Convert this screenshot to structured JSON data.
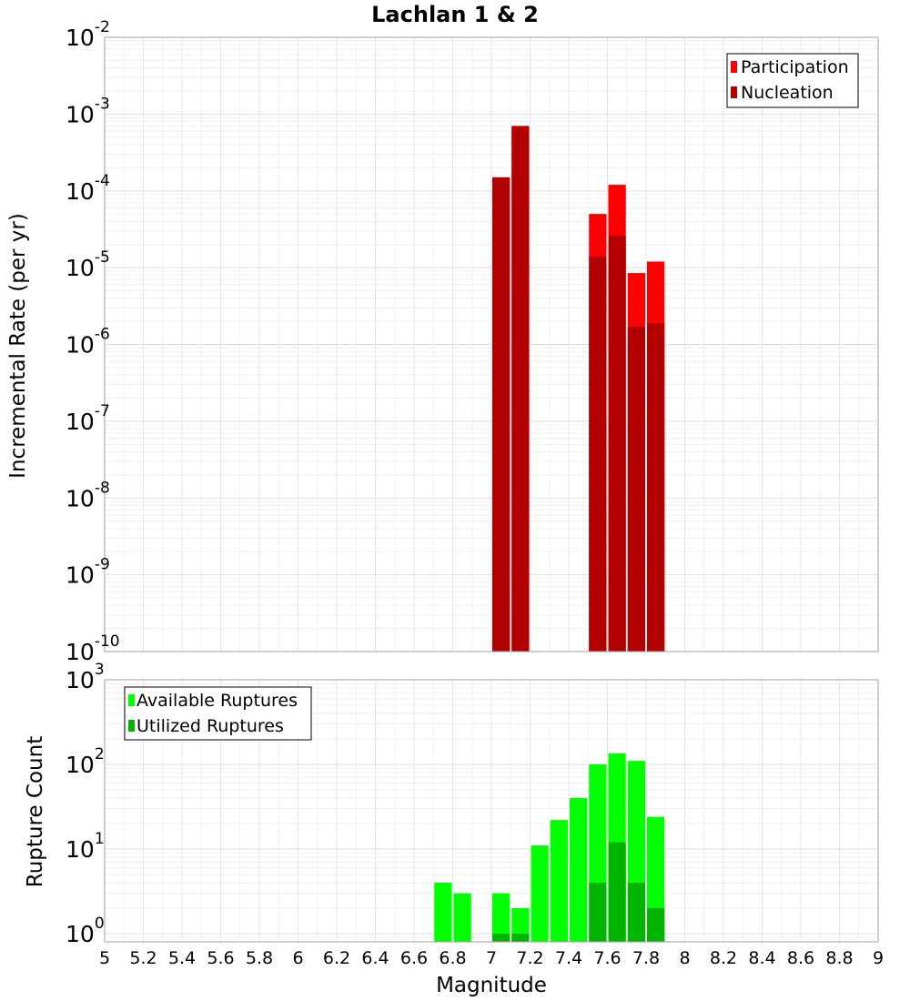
{
  "chart_data": [
    {
      "type": "bar",
      "title": "Lachlan 1 & 2",
      "xlabel": "Magnitude",
      "ylabel": "Incremental Rate (per yr)",
      "yscale": "log",
      "ylim": [
        1e-10,
        0.01
      ],
      "xlim": [
        5,
        9
      ],
      "y_tick_exponents": [
        -10,
        -9,
        -8,
        -7,
        -6,
        -5,
        -4,
        -3,
        -2
      ],
      "grid": true,
      "legend_position": "top-right",
      "bin_centers": [
        7.05,
        7.15,
        7.55,
        7.65,
        7.75,
        7.85
      ],
      "series": [
        {
          "name": "Participation",
          "color": "#ff0000",
          "values": [
            0.00015,
            0.0007,
            5e-05,
            0.00012,
            8.5e-06,
            1.2e-05
          ]
        },
        {
          "name": "Nucleation",
          "color": "#b20000",
          "values": [
            0.00015,
            0.0007,
            1.4e-05,
            2.6e-05,
            1.7e-06,
            1.9e-06
          ]
        }
      ]
    },
    {
      "type": "bar",
      "xlabel": "Magnitude",
      "ylabel": "Rupture Count",
      "yscale": "log",
      "ylim": [
        0.8,
        1000
      ],
      "xlim": [
        5,
        9
      ],
      "y_tick_exponents": [
        0,
        1,
        2,
        3
      ],
      "grid": true,
      "legend_position": "top-left",
      "x_ticks": [
        "5",
        "5.2",
        "5.4",
        "5.6",
        "5.8",
        "6",
        "6.2",
        "6.4",
        "6.6",
        "6.8",
        "7",
        "7.2",
        "7.4",
        "7.6",
        "7.8",
        "8",
        "8.2",
        "8.4",
        "8.6",
        "8.8",
        "9"
      ],
      "bin_centers": [
        6.75,
        6.85,
        7.05,
        7.15,
        7.25,
        7.35,
        7.45,
        7.55,
        7.65,
        7.75,
        7.85
      ],
      "series": [
        {
          "name": "Available Ruptures",
          "color": "#00ff00",
          "values": [
            4,
            3,
            3,
            2,
            11,
            22,
            40,
            100,
            135,
            110,
            24
          ]
        },
        {
          "name": "Utilized Ruptures",
          "color": "#00b400",
          "values": [
            null,
            null,
            1,
            1,
            null,
            null,
            null,
            4,
            12,
            4,
            2
          ]
        }
      ]
    }
  ]
}
